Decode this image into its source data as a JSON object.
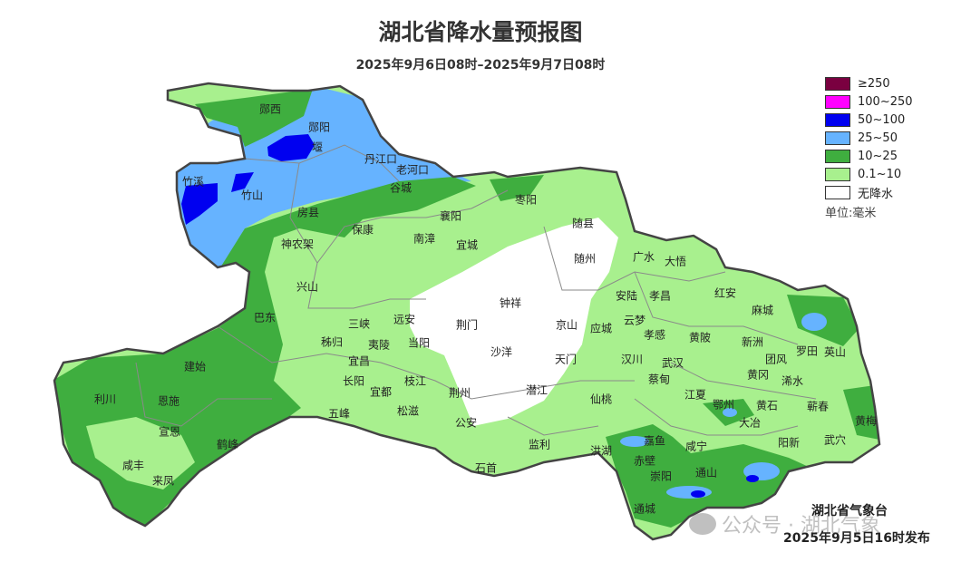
{
  "title": "湖北省降水量预报图",
  "subtitle": "2025年9月6日08时–2025年9月7日08时",
  "legend": {
    "items": [
      {
        "label": "≥250",
        "color": "#7a0040"
      },
      {
        "label": "100~250",
        "color": "#ff00ff"
      },
      {
        "label": "50~100",
        "color": "#0000f0"
      },
      {
        "label": "25~50",
        "color": "#66b3ff"
      },
      {
        "label": "10~25",
        "color": "#3fae3f"
      },
      {
        "label": "0.1~10",
        "color": "#a8f08e"
      },
      {
        "label": "无降水",
        "color": "#ffffff"
      }
    ],
    "unit": "单位:毫米"
  },
  "publisher": "湖北省气象台",
  "publish_time": "2025年9月5日16时发布",
  "watermark": "公众号 · 湖北气象",
  "map_labels": [
    "郧西",
    "郧阳",
    "堰",
    "竹溪",
    "竹山",
    "丹江口",
    "老河口",
    "谷城",
    "房县",
    "保康",
    "南漳",
    "襄阳",
    "宜城",
    "枣阳",
    "随县",
    "随州",
    "广水",
    "大悟",
    "神农架",
    "兴山",
    "钟祥",
    "京山",
    "安陆",
    "孝昌",
    "红安",
    "麻城",
    "巴东",
    "三峡",
    "远安",
    "荆门",
    "沙洋",
    "应城",
    "云梦",
    "孝感",
    "黄陂",
    "新洲",
    "罗田",
    "英山",
    "秭归",
    "夷陵",
    "当阳",
    "天门",
    "汉川",
    "武汉",
    "团风",
    "建始",
    "宜昌",
    "长阳",
    "宜都",
    "枝江",
    "荆州",
    "潜江",
    "蔡甸",
    "黄冈",
    "浠水",
    "利川",
    "恩施",
    "五峰",
    "松滋",
    "公安",
    "仙桃",
    "江夏",
    "鄂州",
    "黄石",
    "蕲春",
    "黄梅",
    "大冶",
    "宣恩",
    "鹤峰",
    "监利",
    "洪湖",
    "嘉鱼",
    "咸宁",
    "阳新",
    "武穴",
    "赤壁",
    "石首",
    "咸丰",
    "崇阳",
    "通山",
    "来凤",
    "通城"
  ]
}
